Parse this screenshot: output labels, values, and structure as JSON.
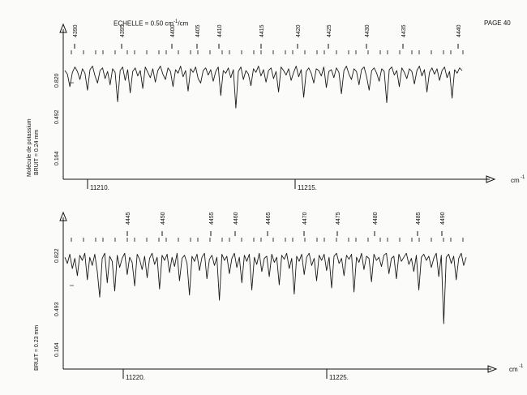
{
  "header": {
    "scale_label": "ECHELLE = 0.50 cm",
    "scale_exponent": "-1",
    "scale_suffix": "/cm",
    "page_label": "PAGE 40"
  },
  "chart_data": [
    {
      "type": "line",
      "molecule_label": "Molécule de potassium",
      "noise_label": "BRUIT =   0.24 mm",
      "unit_label": "cm",
      "unit_exponent": "-1",
      "y_ticks": [
        "0.820",
        "0.492",
        "0.164"
      ],
      "y_marker": "I",
      "x_ticks": [
        "11210.",
        "11215."
      ],
      "line_labels": [
        "4390",
        "4395",
        "4400",
        "4405",
        "4410",
        "4415",
        "4420",
        "4425",
        "4430",
        "4435",
        "4440"
      ],
      "series": [
        {
          "values": [
            0.8,
            0.76,
            0.62,
            0.78,
            0.84,
            0.79,
            0.7,
            0.82,
            0.77,
            0.58,
            0.81,
            0.85,
            0.74,
            0.66,
            0.8,
            0.83,
            0.71,
            0.79,
            0.64,
            0.82,
            0.78,
            0.45,
            0.8,
            0.84,
            0.69,
            0.81,
            0.55,
            0.79,
            0.83,
            0.74,
            0.8,
            0.6,
            0.84,
            0.78,
            0.72,
            0.82,
            0.67,
            0.8,
            0.85,
            0.76,
            0.7,
            0.83,
            0.79,
            0.62,
            0.81,
            0.77,
            0.85,
            0.73,
            0.8,
            0.57,
            0.82,
            0.78,
            0.84,
            0.71,
            0.66,
            0.8,
            0.83,
            0.75,
            0.81,
            0.68,
            0.79,
            0.84,
            0.52,
            0.8,
            0.77,
            0.83,
            0.72,
            0.81,
            0.38,
            0.79,
            0.84,
            0.7,
            0.8,
            0.76,
            0.63,
            0.82,
            0.78,
            0.85,
            0.74,
            0.81,
            0.67,
            0.8,
            0.83,
            0.71,
            0.79,
            0.56,
            0.84,
            0.8,
            0.75,
            0.82,
            0.69,
            0.78,
            0.85,
            0.73,
            0.81,
            0.5,
            0.79,
            0.83,
            0.77,
            0.66,
            0.82,
            0.8,
            0.74,
            0.84,
            0.61,
            0.79,
            0.81,
            0.72,
            0.83,
            0.78,
            0.54,
            0.8,
            0.85,
            0.76,
            0.7,
            0.82,
            0.79,
            0.64,
            0.81,
            0.84,
            0.73,
            0.58,
            0.8,
            0.83,
            0.77,
            0.68,
            0.82,
            0.79,
            0.44,
            0.81,
            0.84,
            0.75,
            0.8,
            0.62,
            0.83,
            0.78,
            0.71,
            0.82,
            0.79,
            0.65,
            0.8,
            0.85,
            0.74,
            0.81,
            0.56,
            0.78,
            0.83,
            0.76,
            0.82,
            0.69,
            0.8,
            0.84,
            0.72,
            0.79,
            0.49,
            0.81,
            0.77,
            0.83,
            0.8
          ]
        }
      ]
    },
    {
      "type": "line",
      "molecule_label": "",
      "noise_label": "BRUIT =   0.23 mm",
      "unit_label": "cm",
      "unit_exponent": "-1",
      "y_ticks": [
        "0.822",
        "0.493",
        "0.164"
      ],
      "y_marker": "I",
      "x_ticks": [
        "11220.",
        "11225."
      ],
      "line_labels": [
        "4445",
        "4450",
        "4455",
        "4460",
        "4465",
        "4470",
        "4475",
        "4480",
        "4485",
        "4490"
      ],
      "series": [
        {
          "values": [
            0.8,
            0.74,
            0.83,
            0.69,
            0.79,
            0.62,
            0.82,
            0.77,
            0.84,
            0.58,
            0.8,
            0.72,
            0.83,
            0.66,
            0.41,
            0.79,
            0.84,
            0.55,
            0.81,
            0.76,
            0.47,
            0.82,
            0.7,
            0.79,
            0.84,
            0.63,
            0.8,
            0.75,
            0.52,
            0.83,
            0.78,
            0.68,
            0.81,
            0.6,
            0.79,
            0.84,
            0.73,
            0.8,
            0.49,
            0.82,
            0.77,
            0.83,
            0.65,
            0.8,
            0.71,
            0.84,
            0.57,
            0.79,
            0.82,
            0.74,
            0.43,
            0.81,
            0.76,
            0.83,
            0.67,
            0.8,
            0.84,
            0.59,
            0.78,
            0.82,
            0.72,
            0.8,
            0.38,
            0.83,
            0.77,
            0.81,
            0.64,
            0.79,
            0.84,
            0.7,
            0.8,
            0.55,
            0.82,
            0.76,
            0.83,
            0.48,
            0.8,
            0.73,
            0.84,
            0.66,
            0.79,
            0.81,
            0.61,
            0.83,
            0.75,
            0.8,
            0.53,
            0.82,
            0.78,
            0.84,
            0.69,
            0.79,
            0.44,
            0.81,
            0.76,
            0.83,
            0.63,
            0.8,
            0.84,
            0.72,
            0.79,
            0.57,
            0.82,
            0.77,
            0.83,
            0.67,
            0.8,
            0.5,
            0.81,
            0.84,
            0.74,
            0.79,
            0.62,
            0.82,
            0.78,
            0.83,
            0.46,
            0.8,
            0.75,
            0.84,
            0.68,
            0.81,
            0.79,
            0.56,
            0.83,
            0.77,
            0.8,
            0.71,
            0.82,
            0.84,
            0.64,
            0.79,
            0.81,
            0.59,
            0.83,
            0.76,
            0.8,
            0.84,
            0.73,
            0.79,
            0.66,
            0.82,
            0.48,
            0.8,
            0.83,
            0.77,
            0.81,
            0.7,
            0.79,
            0.84,
            0.61,
            0.82,
            0.15,
            0.8,
            0.83,
            0.74,
            0.81,
            0.58,
            0.79,
            0.84,
            0.72,
            0.8
          ]
        }
      ]
    }
  ]
}
